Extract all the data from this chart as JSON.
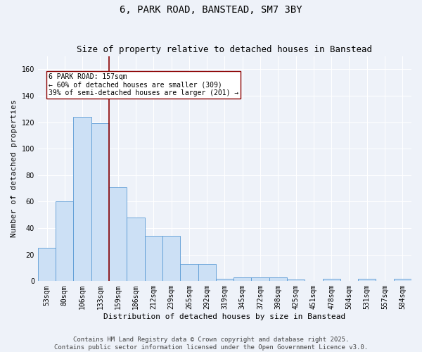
{
  "title_line1": "6, PARK ROAD, BANSTEAD, SM7 3BY",
  "title_line2": "Size of property relative to detached houses in Banstead",
  "xlabel": "Distribution of detached houses by size in Banstead",
  "ylabel": "Number of detached properties",
  "categories": [
    "53sqm",
    "80sqm",
    "106sqm",
    "133sqm",
    "159sqm",
    "186sqm",
    "212sqm",
    "239sqm",
    "265sqm",
    "292sqm",
    "319sqm",
    "345sqm",
    "372sqm",
    "398sqm",
    "425sqm",
    "451sqm",
    "478sqm",
    "504sqm",
    "531sqm",
    "557sqm",
    "584sqm"
  ],
  "values": [
    25,
    60,
    124,
    119,
    71,
    48,
    34,
    34,
    13,
    13,
    2,
    3,
    3,
    3,
    1,
    0,
    2,
    0,
    2,
    0,
    2
  ],
  "bar_color": "#cce0f5",
  "bar_edge_color": "#5b9bd5",
  "vline_color": "#8B0000",
  "vline_pos": 3.5,
  "annotation_text": "6 PARK ROAD: 157sqm\n← 60% of detached houses are smaller (309)\n39% of semi-detached houses are larger (201) →",
  "annotation_box_color": "#ffffff",
  "annotation_box_edge": "#8B0000",
  "ylim": [
    0,
    170
  ],
  "yticks": [
    0,
    20,
    40,
    60,
    80,
    100,
    120,
    140,
    160
  ],
  "background_color": "#eef2f9",
  "grid_color": "#ffffff",
  "title_fontsize": 10,
  "subtitle_fontsize": 9,
  "axis_label_fontsize": 8,
  "tick_fontsize": 7,
  "annotation_fontsize": 7,
  "footer_fontsize": 6.5,
  "footer_line1": "Contains HM Land Registry data © Crown copyright and database right 2025.",
  "footer_line2": "Contains public sector information licensed under the Open Government Licence v3.0."
}
